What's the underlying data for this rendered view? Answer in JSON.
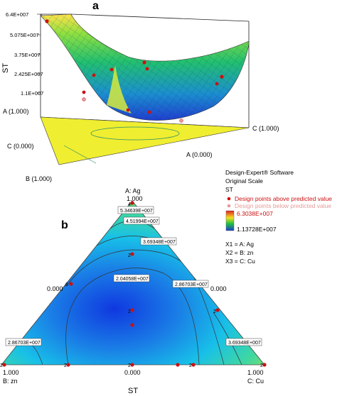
{
  "panel_a": {
    "letter": "a",
    "z_axis_title": "ST",
    "z_ticks": [
      "6.4E+007",
      "5.075E+007",
      "3.75E+007",
      "2.425E+007",
      "1.1E+007"
    ],
    "vertex_top_left": "A (1.000)",
    "vertex_mid_left": "C (0.000)",
    "vertex_bottom_left": "B (1.000)",
    "vertex_right": "C (1.000)",
    "vertex_bottom_right": "A (0.000)"
  },
  "panel_b": {
    "letter": "b",
    "top_component": "A: Ag",
    "top_value": "1.000",
    "left_value": "0.000",
    "right_value": "0.000",
    "bottom_left_value": "1.000",
    "bottom_left_component": "B: zn",
    "bottom_mid_value": "0.000",
    "bottom_right_value": "1.000",
    "bottom_right_component": "C: Cu",
    "x_title": "ST",
    "contours": [
      "5.34639E+007",
      "4.51994E+007",
      "3.69348E+007",
      "2.04058E+007",
      "2.86703E+007",
      "2.86703E+007",
      "3.69348E+007"
    ],
    "point_counts": [
      "4",
      "2",
      "6",
      "2",
      "2",
      "2",
      "2",
      "2",
      "2",
      "2"
    ]
  },
  "legend": {
    "software": "Design-Expert® Software",
    "scale": "Original Scale",
    "response": "ST",
    "above_label": "Design points above predicted value",
    "below_label": "Design points below predicted value",
    "max_value": "6.3038E+007",
    "min_value": "1.13728E+007",
    "x1": "X1 = A: Ag",
    "x2": "X2 = B: zn",
    "x3": "X3 = C: Cu",
    "colors": {
      "above": "#cc1111",
      "below": "#e59a9a",
      "high": "#e02020",
      "mid": "#22c040",
      "low": "#1a3fd0"
    }
  }
}
